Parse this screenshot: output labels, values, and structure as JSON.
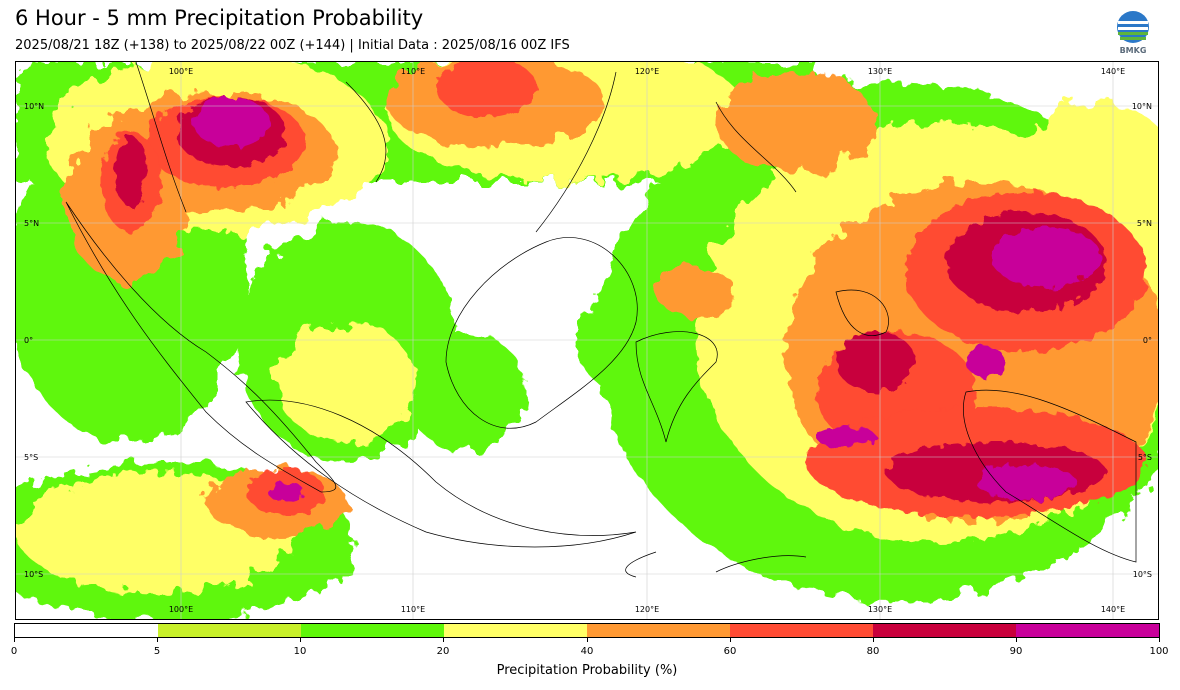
{
  "title": "6 Hour - 5 mm Precipitation Probability",
  "subtitle": "2025/08/21 18Z (+138) to 2025/08/22 00Z (+144) | Initial Data : 2025/08/16 00Z IFS",
  "logo_text": "BMKG",
  "map": {
    "lon_labels": [
      "100°E",
      "110°E",
      "120°E",
      "130°E",
      "140°E"
    ],
    "lat_labels": [
      "10°N",
      "5°N",
      "0°",
      "5°S",
      "10°S"
    ]
  },
  "colorbar": {
    "label": "Precipitation Probability (%)",
    "ticks": [
      "0",
      "5",
      "10",
      "20",
      "40",
      "60",
      "80",
      "90",
      "100"
    ],
    "colors": [
      "#ffffff",
      "#c8f02a",
      "#5ff70a",
      "#ffff66",
      "#ff9933",
      "#ff4b33",
      "#c8003c",
      "#c8009a"
    ]
  }
}
